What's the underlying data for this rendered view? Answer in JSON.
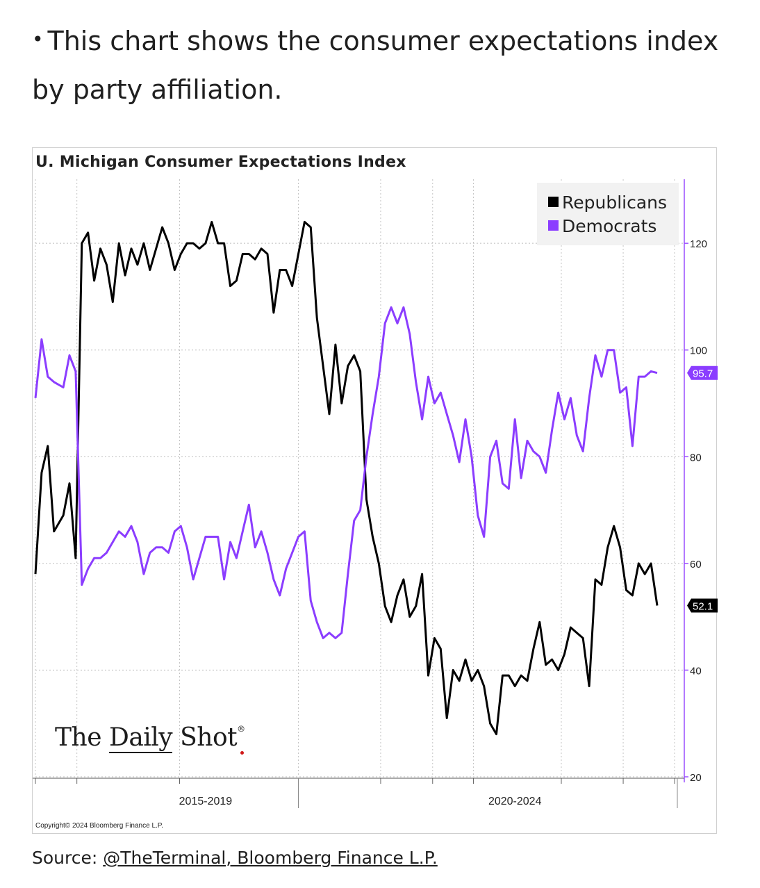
{
  "intro": {
    "bullet": "•",
    "text": "This chart shows the consumer expectations index by party affiliation."
  },
  "source": {
    "label": "Source: ",
    "link_text": "@TheTerminal, Bloomberg Finance L.P."
  },
  "logo": {
    "text_a": "The ",
    "text_b": "Daily",
    "text_c": " Shot"
  },
  "copyright": "Copyright© 2024 Bloomberg Finance L.P.",
  "colors": {
    "republicans": "#000000",
    "democrats": "#8b3dff",
    "axis": "#9a4dff"
  },
  "chart_data": {
    "type": "line",
    "title": "U. Michigan Consumer Expectations Index",
    "xlabel": "",
    "ylabel": "",
    "ylim": [
      20,
      132
    ],
    "yticks": [
      20,
      40,
      60,
      80,
      100,
      120
    ],
    "x_range": [
      2014.0,
      2024.42
    ],
    "x_period_labels": [
      {
        "label": "2015-2019",
        "x": 2016.75
      },
      {
        "label": "2020-2024",
        "x": 2021.75
      }
    ],
    "x_period_divider": 2018.25,
    "x_minor_ticks": [
      2014.0,
      2014.67,
      2016.33,
      2018.25,
      2019.58,
      2020.42,
      2021.08,
      2022.5,
      2023.5,
      2024.33
    ],
    "legend_position": "top-right",
    "grid": true,
    "series": [
      {
        "name": "Republicans",
        "color": "#000000",
        "last_value_label": "52.1",
        "points": [
          [
            2014.0,
            58
          ],
          [
            2014.1,
            77
          ],
          [
            2014.2,
            82
          ],
          [
            2014.3,
            66
          ],
          [
            2014.45,
            69
          ],
          [
            2014.55,
            75
          ],
          [
            2014.65,
            61
          ],
          [
            2014.75,
            120
          ],
          [
            2014.85,
            122
          ],
          [
            2014.95,
            113
          ],
          [
            2015.05,
            119
          ],
          [
            2015.15,
            116
          ],
          [
            2015.25,
            109
          ],
          [
            2015.35,
            120
          ],
          [
            2015.45,
            114
          ],
          [
            2015.55,
            119
          ],
          [
            2015.65,
            116
          ],
          [
            2015.75,
            120
          ],
          [
            2015.85,
            115
          ],
          [
            2015.95,
            119
          ],
          [
            2016.05,
            123
          ],
          [
            2016.15,
            120
          ],
          [
            2016.25,
            115
          ],
          [
            2016.35,
            118
          ],
          [
            2016.45,
            120
          ],
          [
            2016.55,
            120
          ],
          [
            2016.65,
            119
          ],
          [
            2016.75,
            120
          ],
          [
            2016.85,
            124
          ],
          [
            2016.95,
            120
          ],
          [
            2017.05,
            120
          ],
          [
            2017.15,
            112
          ],
          [
            2017.25,
            113
          ],
          [
            2017.35,
            118
          ],
          [
            2017.45,
            118
          ],
          [
            2017.55,
            117
          ],
          [
            2017.65,
            119
          ],
          [
            2017.75,
            118
          ],
          [
            2017.85,
            107
          ],
          [
            2017.95,
            115
          ],
          [
            2018.05,
            115
          ],
          [
            2018.15,
            112
          ],
          [
            2018.25,
            118
          ],
          [
            2018.35,
            124
          ],
          [
            2018.45,
            123
          ],
          [
            2018.55,
            106
          ],
          [
            2018.65,
            97
          ],
          [
            2018.75,
            88
          ],
          [
            2018.85,
            101
          ],
          [
            2018.95,
            90
          ],
          [
            2019.05,
            97
          ],
          [
            2019.15,
            99
          ],
          [
            2019.25,
            96
          ],
          [
            2019.35,
            72
          ],
          [
            2019.45,
            65
          ],
          [
            2019.55,
            60
          ],
          [
            2019.65,
            52
          ],
          [
            2019.75,
            49
          ],
          [
            2019.85,
            54
          ],
          [
            2019.95,
            57
          ],
          [
            2020.05,
            50
          ],
          [
            2020.15,
            52
          ],
          [
            2020.25,
            58
          ],
          [
            2020.35,
            39
          ],
          [
            2020.45,
            46
          ],
          [
            2020.55,
            44
          ],
          [
            2020.65,
            31
          ],
          [
            2020.75,
            40
          ],
          [
            2020.85,
            38
          ],
          [
            2020.95,
            42
          ],
          [
            2021.05,
            38
          ],
          [
            2021.15,
            40
          ],
          [
            2021.25,
            37
          ],
          [
            2021.35,
            30
          ],
          [
            2021.45,
            28
          ],
          [
            2021.55,
            39
          ],
          [
            2021.65,
            39
          ],
          [
            2021.75,
            37
          ],
          [
            2021.85,
            39
          ],
          [
            2021.95,
            38
          ],
          [
            2022.05,
            44
          ],
          [
            2022.15,
            49
          ],
          [
            2022.25,
            41
          ],
          [
            2022.35,
            42
          ],
          [
            2022.45,
            40
          ],
          [
            2022.55,
            43
          ],
          [
            2022.65,
            48
          ],
          [
            2022.75,
            47
          ],
          [
            2022.85,
            46
          ],
          [
            2022.95,
            37
          ],
          [
            2023.05,
            57
          ],
          [
            2023.15,
            56
          ],
          [
            2023.25,
            63
          ],
          [
            2023.35,
            67
          ],
          [
            2023.45,
            63
          ],
          [
            2023.55,
            55
          ],
          [
            2023.65,
            54
          ],
          [
            2023.75,
            60
          ],
          [
            2023.85,
            58
          ],
          [
            2023.95,
            60
          ],
          [
            2024.05,
            52.1
          ]
        ]
      },
      {
        "name": "Democrats",
        "color": "#8b3dff",
        "last_value_label": "95.7",
        "points": [
          [
            2014.0,
            91
          ],
          [
            2014.1,
            102
          ],
          [
            2014.2,
            95
          ],
          [
            2014.3,
            94
          ],
          [
            2014.45,
            93
          ],
          [
            2014.55,
            99
          ],
          [
            2014.65,
            96
          ],
          [
            2014.75,
            56
          ],
          [
            2014.85,
            59
          ],
          [
            2014.95,
            61
          ],
          [
            2015.05,
            61
          ],
          [
            2015.15,
            62
          ],
          [
            2015.25,
            64
          ],
          [
            2015.35,
            66
          ],
          [
            2015.45,
            65
          ],
          [
            2015.55,
            67
          ],
          [
            2015.65,
            64
          ],
          [
            2015.75,
            58
          ],
          [
            2015.85,
            62
          ],
          [
            2015.95,
            63
          ],
          [
            2016.05,
            63
          ],
          [
            2016.15,
            62
          ],
          [
            2016.25,
            66
          ],
          [
            2016.35,
            67
          ],
          [
            2016.45,
            63
          ],
          [
            2016.55,
            57
          ],
          [
            2016.65,
            61
          ],
          [
            2016.75,
            65
          ],
          [
            2016.85,
            65
          ],
          [
            2016.95,
            65
          ],
          [
            2017.05,
            57
          ],
          [
            2017.15,
            64
          ],
          [
            2017.25,
            61
          ],
          [
            2017.35,
            66
          ],
          [
            2017.45,
            71
          ],
          [
            2017.55,
            63
          ],
          [
            2017.65,
            66
          ],
          [
            2017.75,
            62
          ],
          [
            2017.85,
            57
          ],
          [
            2017.95,
            54
          ],
          [
            2018.05,
            59
          ],
          [
            2018.15,
            62
          ],
          [
            2018.25,
            65
          ],
          [
            2018.35,
            66
          ],
          [
            2018.45,
            53
          ],
          [
            2018.55,
            49
          ],
          [
            2018.65,
            46
          ],
          [
            2018.75,
            47
          ],
          [
            2018.85,
            46
          ],
          [
            2018.95,
            47
          ],
          [
            2019.05,
            58
          ],
          [
            2019.15,
            68
          ],
          [
            2019.25,
            70
          ],
          [
            2019.35,
            80
          ],
          [
            2019.45,
            88
          ],
          [
            2019.55,
            95
          ],
          [
            2019.65,
            105
          ],
          [
            2019.75,
            108
          ],
          [
            2019.85,
            105
          ],
          [
            2019.95,
            108
          ],
          [
            2020.05,
            103
          ],
          [
            2020.15,
            94
          ],
          [
            2020.25,
            87
          ],
          [
            2020.35,
            95
          ],
          [
            2020.45,
            90
          ],
          [
            2020.55,
            92
          ],
          [
            2020.65,
            88
          ],
          [
            2020.75,
            84
          ],
          [
            2020.85,
            79
          ],
          [
            2020.95,
            87
          ],
          [
            2021.05,
            80
          ],
          [
            2021.15,
            69
          ],
          [
            2021.25,
            65
          ],
          [
            2021.35,
            80
          ],
          [
            2021.45,
            83
          ],
          [
            2021.55,
            75
          ],
          [
            2021.65,
            74
          ],
          [
            2021.75,
            87
          ],
          [
            2021.85,
            76
          ],
          [
            2021.95,
            83
          ],
          [
            2022.05,
            81
          ],
          [
            2022.15,
            80
          ],
          [
            2022.25,
            77
          ],
          [
            2022.35,
            85
          ],
          [
            2022.45,
            92
          ],
          [
            2022.55,
            87
          ],
          [
            2022.65,
            91
          ],
          [
            2022.75,
            84
          ],
          [
            2022.85,
            81
          ],
          [
            2022.95,
            91
          ],
          [
            2023.05,
            99
          ],
          [
            2023.15,
            95
          ],
          [
            2023.25,
            100
          ],
          [
            2023.35,
            100
          ],
          [
            2023.45,
            92
          ],
          [
            2023.55,
            93
          ],
          [
            2023.65,
            82
          ],
          [
            2023.75,
            95
          ],
          [
            2023.85,
            95
          ],
          [
            2023.95,
            96
          ],
          [
            2024.05,
            95.7
          ]
        ]
      }
    ]
  }
}
